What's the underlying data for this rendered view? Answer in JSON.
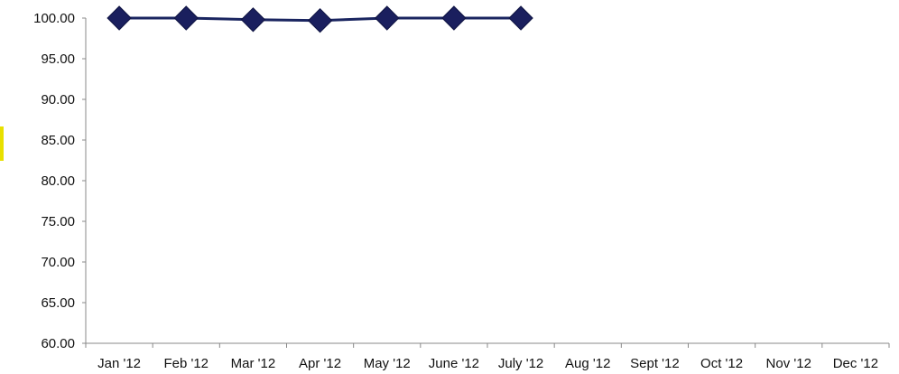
{
  "chart_data": {
    "type": "line",
    "title": "",
    "xlabel": "",
    "ylabel": "",
    "categories": [
      "Jan '12",
      "Feb '12",
      "Mar '12",
      "Apr '12",
      "May '12",
      "June '12",
      "July '12",
      "Aug '12",
      "Sept '12",
      "Oct '12",
      "Nov '12",
      "Dec '12"
    ],
    "series": [
      {
        "values": [
          100.0,
          100.0,
          99.8,
          99.7,
          100.0,
          100.0,
          100.0,
          null,
          null,
          null,
          null,
          null
        ]
      }
    ],
    "ylim": [
      60,
      100
    ],
    "yticks": [
      "60.00",
      "65.00",
      "70.00",
      "75.00",
      "80.00",
      "85.00",
      "90.00",
      "95.00",
      "100.00"
    ],
    "grid": false,
    "legend": "none",
    "colors": {
      "line": "#1a2560",
      "marker": "#1a1f5e",
      "axis": "#888888"
    }
  }
}
